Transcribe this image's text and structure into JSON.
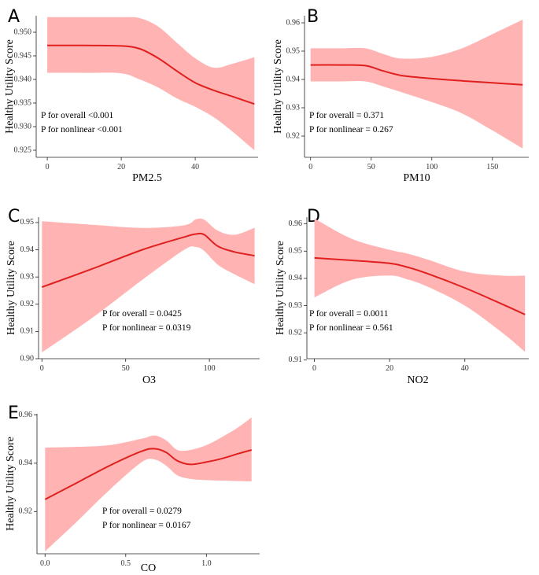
{
  "chart_data": [
    {
      "panel": "A",
      "type": "line",
      "xlabel": "PM2.5",
      "ylabel": "Healthy Utility Score",
      "xlim": [
        -3,
        57
      ],
      "ylim": [
        0.9235,
        0.9535
      ],
      "xticks": [
        0,
        20,
        40
      ],
      "yticks": [
        0.925,
        0.93,
        0.935,
        0.94,
        0.945,
        0.95
      ],
      "ytick_labels": [
        "0.925",
        "0.930",
        "0.935",
        "0.940",
        "0.945",
        "0.950"
      ],
      "x": [
        0,
        10,
        20,
        25,
        30,
        35,
        40,
        45,
        50,
        56
      ],
      "y": [
        0.9472,
        0.9472,
        0.9471,
        0.9465,
        0.9445,
        0.9418,
        0.9393,
        0.9377,
        0.9364,
        0.9348
      ],
      "upper": [
        0.9532,
        0.9532,
        0.9532,
        0.953,
        0.9512,
        0.9478,
        0.9445,
        0.9425,
        0.9433,
        0.9447
      ],
      "lower": [
        0.9414,
        0.9414,
        0.9413,
        0.94,
        0.9383,
        0.936,
        0.9342,
        0.932,
        0.929,
        0.925
      ],
      "annotations": [
        "P for overall  <0.001",
        "P for nonlinear  <0.001"
      ]
    },
    {
      "panel": "B",
      "type": "line",
      "xlabel": "PM10",
      "ylabel": "Healthy Utility Score",
      "xlim": [
        -5,
        180
      ],
      "ylim": [
        0.9125,
        0.9625
      ],
      "xticks": [
        0,
        50,
        100,
        150
      ],
      "yticks": [
        0.92,
        0.93,
        0.94,
        0.95,
        0.96
      ],
      "ytick_labels": [
        "0.92",
        "0.93",
        "0.94",
        "0.95",
        "0.96"
      ],
      "x": [
        0,
        25,
        45,
        60,
        75,
        100,
        125,
        150,
        175
      ],
      "y": [
        0.9451,
        0.9451,
        0.9449,
        0.943,
        0.9414,
        0.9403,
        0.9395,
        0.9388,
        0.9381
      ],
      "upper": [
        0.951,
        0.951,
        0.951,
        0.949,
        0.9474,
        0.948,
        0.951,
        0.956,
        0.9611
      ],
      "lower": [
        0.9393,
        0.9393,
        0.9393,
        0.9375,
        0.9355,
        0.932,
        0.928,
        0.922,
        0.9156
      ],
      "annotations": [
        "P for overall =  0.371",
        "P for nonlinear =  0.267"
      ]
    },
    {
      "panel": "C",
      "type": "line",
      "xlabel": "O3",
      "ylabel": "Healthy Utility Score",
      "xlim": [
        -2,
        130
      ],
      "ylim": [
        0.9,
        0.952
      ],
      "xticks": [
        0,
        50,
        100
      ],
      "yticks": [
        0.9,
        0.91,
        0.92,
        0.93,
        0.94,
        0.95
      ],
      "ytick_labels": [
        "0.90",
        "0.91",
        "0.92",
        "0.93",
        "0.94",
        "0.95"
      ],
      "x": [
        0,
        30,
        60,
        85,
        92,
        97,
        105,
        115,
        127
      ],
      "y": [
        0.9263,
        0.933,
        0.94,
        0.9447,
        0.9458,
        0.9455,
        0.9413,
        0.9392,
        0.9378
      ],
      "upper": [
        0.9505,
        0.9492,
        0.948,
        0.949,
        0.9512,
        0.951,
        0.947,
        0.9455,
        0.9481
      ],
      "lower": [
        0.9023,
        0.915,
        0.929,
        0.94,
        0.941,
        0.9395,
        0.9345,
        0.931,
        0.9274
      ],
      "annotations": [
        "P for overall =  0.0425",
        "P for nonlinear =  0.0319"
      ]
    },
    {
      "panel": "D",
      "type": "line",
      "xlabel": "NO2",
      "ylabel": "Healthy Utility Score",
      "xlim": [
        -2,
        57
      ],
      "ylim": [
        0.9105,
        0.9625
      ],
      "xticks": [
        0,
        20,
        40
      ],
      "yticks": [
        0.91,
        0.92,
        0.93,
        0.94,
        0.95,
        0.96
      ],
      "ytick_labels": [
        "0.91",
        "0.92",
        "0.93",
        "0.94",
        "0.95",
        "0.96"
      ],
      "x": [
        0,
        10,
        20,
        25,
        30,
        40,
        50,
        56
      ],
      "y": [
        0.9475,
        0.9466,
        0.9455,
        0.944,
        0.9418,
        0.9365,
        0.9305,
        0.9267
      ],
      "upper": [
        0.962,
        0.9545,
        0.9505,
        0.949,
        0.947,
        0.9425,
        0.941,
        0.941
      ],
      "lower": [
        0.933,
        0.9395,
        0.941,
        0.9395,
        0.937,
        0.93,
        0.92,
        0.913
      ],
      "annotations": [
        "P for overall =  0.0011",
        "P for nonlinear =  0.561"
      ]
    },
    {
      "panel": "E",
      "type": "line",
      "xlabel": "CO",
      "ylabel": "Healthy Utility Score",
      "xlim": [
        -0.05,
        1.33
      ],
      "ylim": [
        0.9025,
        0.9605
      ],
      "xticks": [
        0.0,
        0.5,
        1.0
      ],
      "xtick_labels": [
        "0.0",
        "0.5",
        "1.0"
      ],
      "yticks": [
        0.92,
        0.94,
        0.96
      ],
      "ytick_labels": [
        "0.92",
        "0.94",
        "0.96"
      ],
      "x": [
        0.0,
        0.2,
        0.4,
        0.6,
        0.68,
        0.75,
        0.82,
        0.9,
        1.0,
        1.1,
        1.2,
        1.28
      ],
      "y": [
        0.925,
        0.932,
        0.939,
        0.945,
        0.946,
        0.9445,
        0.941,
        0.9395,
        0.9405,
        0.942,
        0.944,
        0.9455
      ],
      "upper": [
        0.9465,
        0.9468,
        0.9475,
        0.9502,
        0.9515,
        0.9495,
        0.9455,
        0.9455,
        0.9475,
        0.951,
        0.955,
        0.959
      ],
      "lower": [
        0.9035,
        0.916,
        0.929,
        0.9405,
        0.9415,
        0.939,
        0.935,
        0.9335,
        0.933,
        0.9328,
        0.9326,
        0.9325
      ],
      "annotations": [
        "P for overall =  0.0279",
        "P for nonlinear =  0.0167"
      ]
    }
  ]
}
